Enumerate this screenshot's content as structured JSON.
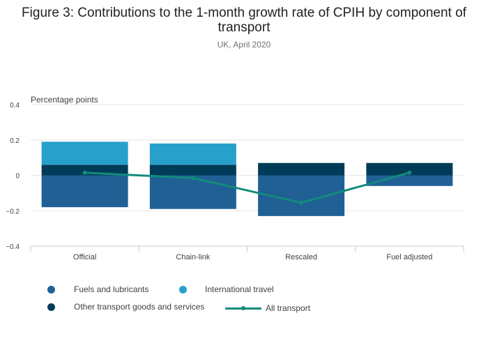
{
  "chart_data": {
    "type": "bar",
    "title": "Figure 3: Contributions to the 1-month growth rate of CPIH by component of transport",
    "subtitle": "UK, April 2020",
    "ylabel": "Percentage points",
    "xlabel": "",
    "ylim": [
      -0.4,
      0.4
    ],
    "yticks": [
      "0.4",
      "0.2",
      "0",
      "−0.2",
      "−0.4"
    ],
    "ytick_values": [
      0.4,
      0.2,
      0,
      -0.2,
      -0.4
    ],
    "categories": [
      "Official",
      "Chain-link",
      "Rescaled",
      "Fuel adjusted"
    ],
    "stacked": true,
    "grid": true,
    "legend_position": "bottom",
    "series": [
      {
        "name": "Fuels and lubricants",
        "type": "bar",
        "color": "#206095",
        "values": [
          -0.18,
          -0.19,
          -0.23,
          -0.06
        ]
      },
      {
        "name": "International travel",
        "type": "bar",
        "color": "#27a0cc",
        "values": [
          0.13,
          0.12,
          0.0,
          0.0
        ]
      },
      {
        "name": "Other transport goods and services",
        "type": "bar",
        "color": "#003c57",
        "values": [
          0.06,
          0.06,
          0.07,
          0.07
        ]
      },
      {
        "name": "All transport",
        "type": "line",
        "color": "#118c7b",
        "values": [
          0.015,
          -0.015,
          -0.155,
          0.015
        ]
      }
    ]
  }
}
